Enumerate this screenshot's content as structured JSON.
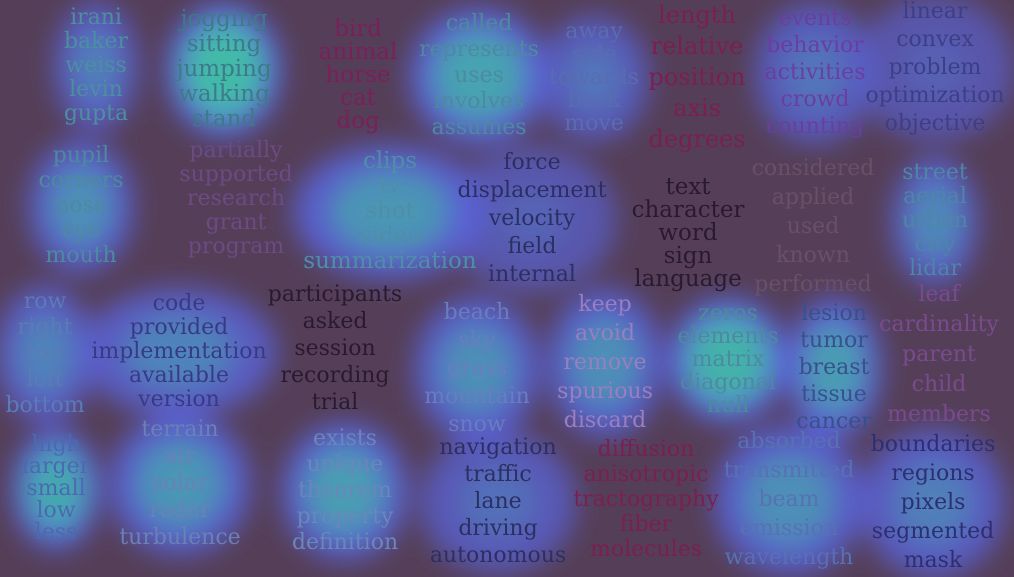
{
  "colors": {
    "background": "#553f58",
    "glow_outer": "#5a63d8",
    "glow_inner": "#3dcf9c"
  },
  "clusters": [
    {
      "id": "names",
      "words": [
        "irani",
        "baker",
        "weiss",
        "levin",
        "gupta"
      ],
      "intensity": 0.55,
      "color": "#4c8fa0"
    },
    {
      "id": "actions",
      "words": [
        "jogging",
        "sitting",
        "jumping",
        "walking",
        "stand"
      ],
      "intensity": 1.0,
      "color": "#3e7a8a"
    },
    {
      "id": "animals",
      "words": [
        "bird",
        "animal",
        "horse",
        "cat",
        "dog"
      ],
      "intensity": 0.0,
      "color": "#7a1f5a"
    },
    {
      "id": "represent",
      "words": [
        "called",
        "represents",
        "uses",
        "involves",
        "assumes"
      ],
      "intensity": 0.85,
      "color": "#4d8aa0"
    },
    {
      "id": "direction",
      "words": [
        "away",
        "side",
        "towards",
        "back",
        "move"
      ],
      "intensity": 0.45,
      "color": "#5a6cb0"
    },
    {
      "id": "geometry",
      "words": [
        "length",
        "relative",
        "position",
        "axis",
        "degrees"
      ],
      "intensity": 0.0,
      "color": "#7a1f4e"
    },
    {
      "id": "crowd",
      "words": [
        "events",
        "behavior",
        "activities",
        "crowd",
        "counting"
      ],
      "intensity": 0.45,
      "color": "#6a3ea0"
    },
    {
      "id": "optimization",
      "words": [
        "linear",
        "convex",
        "problem",
        "optimization",
        "objective"
      ],
      "intensity": 0.2,
      "color": "#3c3f86"
    },
    {
      "id": "face",
      "words": [
        "pupil",
        "corners",
        "nose",
        "eye",
        "mouth"
      ],
      "intensity": 0.7,
      "color": "#4d8aa0"
    },
    {
      "id": "research",
      "words": [
        "partially",
        "supported",
        "research",
        "grant",
        "program"
      ],
      "intensity": 0.0,
      "color": "#6c4a84"
    },
    {
      "id": "video",
      "words": [
        "clips",
        "tv",
        "shot",
        "video",
        "summarization"
      ],
      "intensity": 0.75,
      "color": "#4f8ea8"
    },
    {
      "id": "physics",
      "words": [
        "force",
        "displacement",
        "velocity",
        "field",
        "internal"
      ],
      "intensity": 0.25,
      "color": "#2c2f62"
    },
    {
      "id": "text",
      "words": [
        "text",
        "character",
        "word",
        "sign",
        "language"
      ],
      "intensity": 0.0,
      "color": "#2a1a2e"
    },
    {
      "id": "applied",
      "words": [
        "considered",
        "applied",
        "used",
        "known",
        "performed"
      ],
      "intensity": 0.0,
      "color": "#6a5066"
    },
    {
      "id": "urban",
      "words": [
        "street",
        "aerial",
        "urban",
        "city",
        "lidar"
      ],
      "intensity": 0.65,
      "color": "#4d86a6"
    },
    {
      "id": "grid",
      "words": [
        "row",
        "right",
        "top",
        "left",
        "bottom"
      ],
      "intensity": 0.6,
      "color": "#5a7cb6"
    },
    {
      "id": "code",
      "words": [
        "code",
        "provided",
        "implementation",
        "available",
        "version"
      ],
      "intensity": 0.6,
      "color": "#383a86"
    },
    {
      "id": "study",
      "words": [
        "participants",
        "asked",
        "session",
        "recording",
        "trial"
      ],
      "intensity": 0.0,
      "color": "#2a1a2e"
    },
    {
      "id": "outdoor",
      "words": [
        "beach",
        "sky",
        "grass",
        "mountain",
        "snow"
      ],
      "intensity": 0.7,
      "color": "#6a7cc0"
    },
    {
      "id": "avoid",
      "words": [
        "keep",
        "avoid",
        "remove",
        "spurious",
        "discard"
      ],
      "intensity": 0.7,
      "color": "#9a7ec0"
    },
    {
      "id": "matrix",
      "words": [
        "zeros",
        "elements",
        "matrix",
        "diagonal",
        "null"
      ],
      "intensity": 0.95,
      "color": "#4d8aa0"
    },
    {
      "id": "medical",
      "words": [
        "lesion",
        "tumor",
        "breast",
        "tissue",
        "cancer"
      ],
      "intensity": 0.8,
      "color": "#38508e"
    },
    {
      "id": "hierarchy",
      "words": [
        "leaf",
        "cardinality",
        "parent",
        "child",
        "members"
      ],
      "intensity": 0.0,
      "color": "#7a4a8e"
    },
    {
      "id": "size",
      "words": [
        "high",
        "larger",
        "small",
        "low",
        "less"
      ],
      "intensity": 0.9,
      "color": "#4a6ab2"
    },
    {
      "id": "environment",
      "words": [
        "terrain",
        "air",
        "solar",
        "radar",
        "turbulence"
      ],
      "intensity": 0.75,
      "color": "#6a80b8"
    },
    {
      "id": "math",
      "words": [
        "exists",
        "unique",
        "theorem",
        "property",
        "definition"
      ],
      "intensity": 0.8,
      "color": "#6a86bc"
    },
    {
      "id": "driving",
      "words": [
        "navigation",
        "traffic",
        "lane",
        "driving",
        "autonomous"
      ],
      "intensity": 0.4,
      "color": "#2c2f62"
    },
    {
      "id": "diffusion",
      "words": [
        "diffusion",
        "anisotropic",
        "tractography",
        "fiber",
        "molecules"
      ],
      "intensity": 0.0,
      "color": "#7a1f4e"
    },
    {
      "id": "optics",
      "words": [
        "absorbed",
        "transmitted",
        "beam",
        "emission",
        "wavelength"
      ],
      "intensity": 0.7,
      "color": "#5870b4"
    },
    {
      "id": "segmentation",
      "words": [
        "boundaries",
        "regions",
        "pixels",
        "segmented",
        "mask"
      ],
      "intensity": 0.55,
      "color": "#2c2f72"
    }
  ]
}
